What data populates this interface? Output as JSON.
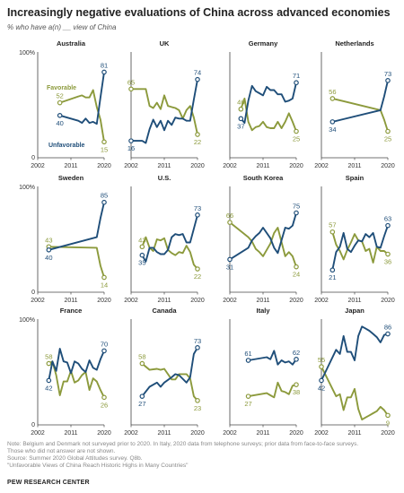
{
  "title": "Increasingly negative evaluations of China across advanced economies",
  "subtitle": "% who have a(n) __ view of China",
  "notes": [
    "Note: Belgium and Denmark not surveyed prior to 2020. In Italy, 2020 data from telephone surveys; prior data from face-to-face surveys.",
    "Those who did not answer are not shown.",
    "Source: Summer 2020 Global Attitudes survey. Q8b.",
    "\"Unfavorable Views of China Reach Historic Highs in Many Countries\""
  ],
  "source_brand": "PEW RESEARCH CENTER",
  "colors": {
    "unfavorable": "#1f4e79",
    "favorable": "#8c9a3c",
    "axis": "#444444"
  },
  "chart_data": {
    "type": "line",
    "xlim": [
      2002,
      2020
    ],
    "ylim": [
      0,
      100
    ],
    "x_ticks": [
      "2002",
      "2011",
      "2020"
    ],
    "y_tick_top": "100%",
    "y_tick_bottom": "0",
    "legend": {
      "favorable": "Favorable",
      "unfavorable": "Unfavorable"
    },
    "panels": [
      {
        "name": "Australia",
        "unfavorable": {
          "x": [
            2008,
            2013,
            2014,
            2015,
            2016,
            2017,
            2018,
            2019,
            2020
          ],
          "y": [
            40,
            35,
            33,
            37,
            33,
            34,
            32,
            57,
            81
          ]
        },
        "favorable": {
          "x": [
            2008,
            2013,
            2014,
            2015,
            2016,
            2017,
            2018,
            2019,
            2020
          ],
          "y": [
            52,
            58,
            59,
            57,
            57,
            64,
            48,
            36,
            15
          ]
        },
        "labels": {
          "unf_start": "40",
          "fav_start": "52",
          "unf_end": "81",
          "fav_end": "15"
        }
      },
      {
        "name": "UK",
        "unfavorable": {
          "x": [
            2002,
            2005,
            2006,
            2007,
            2008,
            2009,
            2010,
            2011,
            2012,
            2013,
            2014,
            2015,
            2016,
            2017,
            2018,
            2019,
            2020
          ],
          "y": [
            16,
            16,
            14,
            27,
            36,
            29,
            35,
            26,
            35,
            31,
            38,
            37,
            37,
            35,
            35,
            55,
            74
          ]
        },
        "favorable": {
          "x": [
            2002,
            2005,
            2006,
            2007,
            2008,
            2009,
            2010,
            2011,
            2012,
            2013,
            2014,
            2015,
            2016,
            2017,
            2018,
            2019,
            2020
          ],
          "y": [
            65,
            65,
            65,
            49,
            47,
            52,
            46,
            59,
            49,
            48,
            47,
            45,
            37,
            45,
            49,
            38,
            22
          ]
        },
        "labels": {
          "unf_start": "16",
          "fav_start": "65",
          "unf_end": "74",
          "fav_end": "22"
        }
      },
      {
        "name": "Germany",
        "unfavorable": {
          "x": [
            2005,
            2006,
            2007,
            2008,
            2009,
            2010,
            2011,
            2012,
            2013,
            2014,
            2015,
            2016,
            2017,
            2018,
            2019,
            2020
          ],
          "y": [
            37,
            33,
            54,
            68,
            63,
            61,
            59,
            67,
            64,
            64,
            60,
            60,
            53,
            54,
            56,
            71
          ]
        },
        "favorable": {
          "x": [
            2005,
            2006,
            2007,
            2008,
            2009,
            2010,
            2011,
            2012,
            2013,
            2014,
            2015,
            2016,
            2017,
            2018,
            2019,
            2020
          ],
          "y": [
            46,
            56,
            34,
            26,
            29,
            30,
            34,
            29,
            28,
            28,
            34,
            28,
            34,
            42,
            34,
            25
          ]
        },
        "labels": {
          "unf_start": "37",
          "fav_start": "46",
          "unf_end": "71",
          "fav_end": "25"
        }
      },
      {
        "name": "Netherlands",
        "unfavorable": {
          "x": [
            2005,
            2018,
            2019,
            2020
          ],
          "y": [
            34,
            45,
            58,
            73
          ]
        },
        "favorable": {
          "x": [
            2005,
            2018,
            2019,
            2020
          ],
          "y": [
            56,
            45,
            36,
            25
          ]
        },
        "labels": {
          "unf_start": "34",
          "fav_start": "56",
          "unf_end": "73",
          "fav_end": "25"
        }
      },
      {
        "name": "Sweden",
        "unfavorable": {
          "x": [
            2005,
            2018,
            2019,
            2020
          ],
          "y": [
            40,
            52,
            70,
            85
          ]
        },
        "favorable": {
          "x": [
            2005,
            2018,
            2019,
            2020
          ],
          "y": [
            43,
            42,
            25,
            14
          ]
        },
        "labels": {
          "unf_start": "40",
          "fav_start": "43",
          "unf_end": "85",
          "fav_end": "14"
        }
      },
      {
        "name": "U.S.",
        "unfavorable": {
          "x": [
            2005,
            2006,
            2007,
            2008,
            2009,
            2010,
            2011,
            2012,
            2013,
            2014,
            2015,
            2016,
            2017,
            2018,
            2019,
            2020
          ],
          "y": [
            35,
            29,
            42,
            42,
            38,
            36,
            36,
            40,
            52,
            55,
            54,
            55,
            47,
            47,
            60,
            73
          ]
        },
        "favorable": {
          "x": [
            2005,
            2006,
            2007,
            2008,
            2009,
            2010,
            2011,
            2012,
            2013,
            2014,
            2015,
            2016,
            2017,
            2018,
            2019,
            2020
          ],
          "y": [
            43,
            52,
            42,
            39,
            50,
            49,
            51,
            40,
            37,
            35,
            38,
            37,
            44,
            38,
            26,
            22
          ]
        },
        "labels": {
          "unf_start": "35",
          "fav_start": "43",
          "unf_end": "73",
          "fav_end": "22"
        }
      },
      {
        "name": "South Korea",
        "unfavorable": {
          "x": [
            2002,
            2007,
            2008,
            2009,
            2010,
            2011,
            2013,
            2014,
            2015,
            2017,
            2018,
            2019,
            2020
          ],
          "y": [
            31,
            42,
            49,
            53,
            56,
            61,
            51,
            42,
            37,
            61,
            60,
            63,
            75
          ]
        },
        "favorable": {
          "x": [
            2002,
            2007,
            2008,
            2009,
            2010,
            2011,
            2013,
            2014,
            2015,
            2017,
            2018,
            2019,
            2020
          ],
          "y": [
            66,
            52,
            48,
            41,
            38,
            34,
            46,
            56,
            61,
            34,
            38,
            34,
            24
          ]
        },
        "labels": {
          "unf_start": "31",
          "fav_start": "66",
          "unf_end": "75",
          "fav_end": "24"
        }
      },
      {
        "name": "Spain",
        "unfavorable": {
          "x": [
            2005,
            2006,
            2007,
            2008,
            2009,
            2010,
            2011,
            2012,
            2013,
            2014,
            2015,
            2016,
            2017,
            2018,
            2019,
            2020
          ],
          "y": [
            21,
            38,
            43,
            56,
            41,
            38,
            44,
            49,
            48,
            55,
            52,
            56,
            43,
            42,
            53,
            63
          ]
        },
        "favorable": {
          "x": [
            2005,
            2006,
            2007,
            2008,
            2009,
            2010,
            2011,
            2012,
            2013,
            2014,
            2015,
            2016,
            2017,
            2018,
            2019,
            2020
          ],
          "y": [
            57,
            45,
            39,
            31,
            40,
            47,
            55,
            49,
            48,
            39,
            41,
            28,
            43,
            39,
            39,
            36
          ]
        },
        "labels": {
          "unf_start": "21",
          "fav_start": "57",
          "unf_end": "63",
          "fav_end": "36"
        }
      },
      {
        "name": "France",
        "unfavorable": {
          "x": [
            2005,
            2006,
            2007,
            2008,
            2009,
            2010,
            2011,
            2012,
            2013,
            2014,
            2015,
            2016,
            2017,
            2018,
            2019,
            2020
          ],
          "y": [
            42,
            60,
            51,
            72,
            60,
            59,
            49,
            60,
            58,
            53,
            50,
            61,
            54,
            52,
            62,
            70
          ]
        },
        "favorable": {
          "x": [
            2005,
            2006,
            2007,
            2008,
            2009,
            2010,
            2011,
            2012,
            2013,
            2014,
            2015,
            2016,
            2017,
            2018,
            2019,
            2020
          ],
          "y": [
            58,
            60,
            47,
            28,
            41,
            41,
            51,
            40,
            42,
            47,
            50,
            33,
            44,
            41,
            33,
            26
          ]
        },
        "labels": {
          "unf_start": "42",
          "fav_start": "58",
          "unf_end": "70",
          "fav_end": "26"
        }
      },
      {
        "name": "Canada",
        "unfavorable": {
          "x": [
            2005,
            2007,
            2009,
            2010,
            2011,
            2013,
            2014,
            2015,
            2017,
            2018,
            2019,
            2020
          ],
          "y": [
            27,
            36,
            40,
            36,
            40,
            45,
            48,
            47,
            40,
            45,
            67,
            73
          ]
        },
        "favorable": {
          "x": [
            2005,
            2007,
            2009,
            2010,
            2011,
            2013,
            2014,
            2015,
            2017,
            2018,
            2019,
            2020
          ],
          "y": [
            58,
            52,
            53,
            52,
            53,
            43,
            43,
            48,
            48,
            44,
            27,
            23
          ]
        },
        "labels": {
          "unf_start": "27",
          "fav_start": "58",
          "unf_end": "73",
          "fav_end": "23"
        }
      },
      {
        "name": "Italy",
        "unfavorable": {
          "x": [
            2007,
            2012,
            2013,
            2014,
            2015,
            2016,
            2017,
            2018,
            2019,
            2020
          ],
          "y": [
            61,
            64,
            62,
            70,
            57,
            61,
            59,
            60,
            57,
            62
          ]
        },
        "favorable": {
          "x": [
            2007,
            2012,
            2013,
            2014,
            2015,
            2016,
            2017,
            2018,
            2019,
            2020
          ],
          "y": [
            27,
            30,
            28,
            26,
            40,
            32,
            31,
            29,
            37,
            38
          ]
        },
        "labels": {
          "unf_start": "61",
          "fav_start": "27",
          "unf_end": "62",
          "fav_end": "38"
        }
      },
      {
        "name": "Japan",
        "unfavorable": {
          "x": [
            2002,
            2006,
            2007,
            2008,
            2009,
            2010,
            2011,
            2012,
            2013,
            2014,
            2015,
            2016,
            2017,
            2018,
            2019,
            2020
          ],
          "y": [
            42,
            71,
            67,
            84,
            69,
            69,
            61,
            84,
            93,
            91,
            89,
            86,
            83,
            78,
            85,
            86
          ]
        },
        "favorable": {
          "x": [
            2002,
            2006,
            2007,
            2008,
            2009,
            2010,
            2011,
            2012,
            2013,
            2014,
            2015,
            2016,
            2017,
            2018,
            2019,
            2020
          ],
          "y": [
            55,
            27,
            29,
            14,
            26,
            26,
            34,
            15,
            5,
            7,
            9,
            11,
            13,
            17,
            14,
            9
          ]
        },
        "labels": {
          "unf_start": "42",
          "fav_start": "55",
          "unf_end": "86",
          "fav_end": "9"
        }
      }
    ]
  }
}
